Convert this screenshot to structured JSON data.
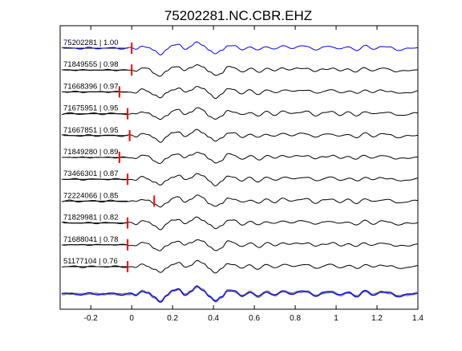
{
  "chart_data": {
    "type": "line",
    "title": "75202281.NC.CBR.EHZ",
    "xlabel": "",
    "ylabel": "",
    "xlim": [
      -0.35,
      1.4
    ],
    "xticks": [
      -0.2,
      0,
      0.2,
      0.4,
      0.6,
      0.8,
      1,
      1.2,
      1.4
    ],
    "xtick_labels": [
      "-0.2",
      "0",
      "0.2",
      "0.4",
      "0.6",
      "0.8",
      "1",
      "1.2",
      "1.4"
    ],
    "grid": false,
    "legend": "none",
    "colors": {
      "reference": "#0000ff",
      "trace": "#000000",
      "pick": "#ff0000",
      "stack": "#808080"
    },
    "series": [
      {
        "name": "75202281 | 1.00",
        "pick": 0.0,
        "reference": true
      },
      {
        "name": "71849555 | 0.98",
        "pick": 0.0
      },
      {
        "name": "71668396 | 0.97",
        "pick": -0.06
      },
      {
        "name": "71675951 | 0.95",
        "pick": -0.02
      },
      {
        "name": "71667851 | 0.95",
        "pick": -0.01
      },
      {
        "name": "71849280 | 0.89",
        "pick": -0.06
      },
      {
        "name": "73466301 | 0.87",
        "pick": -0.02
      },
      {
        "name": "72224066 | 0.85",
        "pick": 0.11
      },
      {
        "name": "71829981 | 0.82",
        "pick": -0.02
      },
      {
        "name": "71688041 | 0.78",
        "pick": -0.02
      },
      {
        "name": "51177104 | 0.76",
        "pick": -0.02
      }
    ],
    "waveform_shape": {
      "t": [
        -0.35,
        -0.3,
        -0.25,
        -0.2,
        -0.15,
        -0.1,
        -0.05,
        0.0,
        0.02,
        0.05,
        0.08,
        0.11,
        0.14,
        0.17,
        0.2,
        0.23,
        0.26,
        0.29,
        0.32,
        0.35,
        0.38,
        0.41,
        0.44,
        0.47,
        0.5,
        0.54,
        0.58,
        0.62,
        0.66,
        0.7,
        0.74,
        0.78,
        0.82,
        0.86,
        0.9,
        0.94,
        0.98,
        1.02,
        1.06,
        1.1,
        1.14,
        1.18,
        1.22,
        1.26,
        1.3,
        1.35,
        1.4
      ],
      "amp": [
        0.0,
        0.05,
        -0.05,
        0.04,
        -0.03,
        0.05,
        -0.04,
        0.0,
        -0.15,
        0.35,
        0.15,
        -0.45,
        -0.95,
        -0.2,
        0.4,
        0.6,
        -0.1,
        0.3,
        0.9,
        0.5,
        -0.3,
        -0.9,
        -0.4,
        0.5,
        0.35,
        -0.25,
        0.25,
        -0.35,
        0.3,
        -0.15,
        0.35,
        0.05,
        0.25,
        0.3,
        -0.25,
        0.15,
        0.3,
        -0.15,
        0.2,
        -0.3,
        0.35,
        -0.1,
        0.25,
        0.15,
        -0.25,
        -0.1,
        0.1
      ]
    }
  }
}
